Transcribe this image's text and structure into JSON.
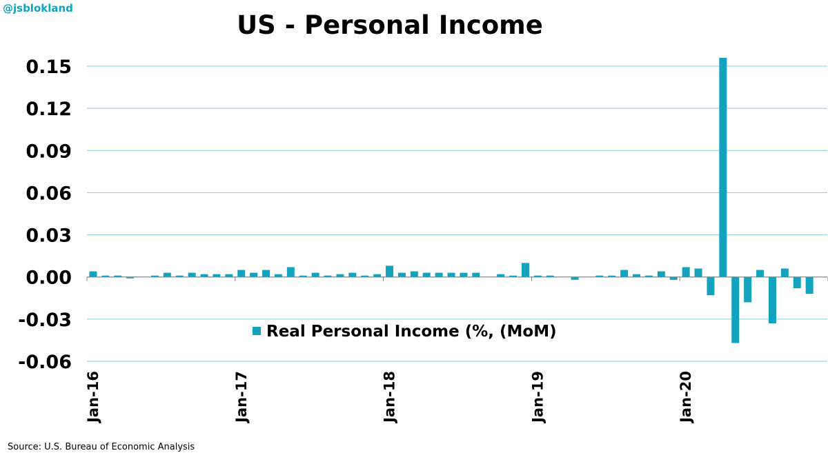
{
  "brand": "@jsblokland",
  "source": "Source: U.S. Bureau of Economic Analysis",
  "colors": {
    "bar": "#13A3BE",
    "grid": "#7FCFDD",
    "text": "#000000",
    "brand": "#13A3BE"
  },
  "chart_data": {
    "type": "bar",
    "title": "US - Personal Income",
    "xlabel": "",
    "ylabel": "",
    "ylim": [
      -0.06,
      0.15
    ],
    "yticks": [
      0.15,
      0.12,
      0.09,
      0.06,
      0.03,
      0.0,
      -0.03,
      -0.06
    ],
    "ytick_labels": [
      "0.15",
      "0.12",
      "0.09",
      "0.06",
      "0.03",
      "0.00",
      "-0.03",
      "-0.06"
    ],
    "xtick_labels": [
      "Jan-16",
      "Jan-17",
      "Jan-18",
      "Jan-19",
      "Jan-20"
    ],
    "xtick_category_index": [
      0,
      12,
      24,
      36,
      48
    ],
    "grid": true,
    "legend_position": "lower-left",
    "series": [
      {
        "name": "Real Personal Income (%, (MoM)",
        "categories": [
          "Jan-16",
          "Feb-16",
          "Mar-16",
          "Apr-16",
          "May-16",
          "Jun-16",
          "Jul-16",
          "Aug-16",
          "Sep-16",
          "Oct-16",
          "Nov-16",
          "Dec-16",
          "Jan-17",
          "Feb-17",
          "Mar-17",
          "Apr-17",
          "May-17",
          "Jun-17",
          "Jul-17",
          "Aug-17",
          "Sep-17",
          "Oct-17",
          "Nov-17",
          "Dec-17",
          "Jan-18",
          "Feb-18",
          "Mar-18",
          "Apr-18",
          "May-18",
          "Jun-18",
          "Jul-18",
          "Aug-18",
          "Sep-18",
          "Oct-18",
          "Nov-18",
          "Dec-18",
          "Jan-19",
          "Feb-19",
          "Mar-19",
          "Apr-19",
          "May-19",
          "Jun-19",
          "Jul-19",
          "Aug-19",
          "Sep-19",
          "Oct-19",
          "Nov-19",
          "Dec-19",
          "Jan-20",
          "Feb-20",
          "Mar-20",
          "Apr-20",
          "May-20",
          "Jun-20",
          "Jul-20",
          "Aug-20",
          "Sep-20",
          "Oct-20",
          "Nov-20",
          "Dec-20"
        ],
        "values": [
          0.004,
          0.001,
          0.001,
          -0.001,
          0.0,
          0.001,
          0.003,
          0.001,
          0.003,
          0.002,
          0.002,
          0.002,
          0.005,
          0.003,
          0.005,
          0.002,
          0.007,
          0.001,
          0.003,
          0.001,
          0.002,
          0.003,
          0.001,
          0.002,
          0.008,
          0.003,
          0.004,
          0.003,
          0.003,
          0.003,
          0.003,
          0.003,
          0.0,
          0.002,
          0.001,
          0.01,
          0.001,
          0.001,
          0.0,
          -0.002,
          0.0,
          0.001,
          0.001,
          0.005,
          0.002,
          0.001,
          0.004,
          -0.002,
          0.007,
          0.006,
          -0.013,
          0.156,
          -0.047,
          -0.018,
          0.005,
          -0.033,
          0.006,
          -0.008,
          -0.012,
          0.0
        ]
      }
    ]
  }
}
